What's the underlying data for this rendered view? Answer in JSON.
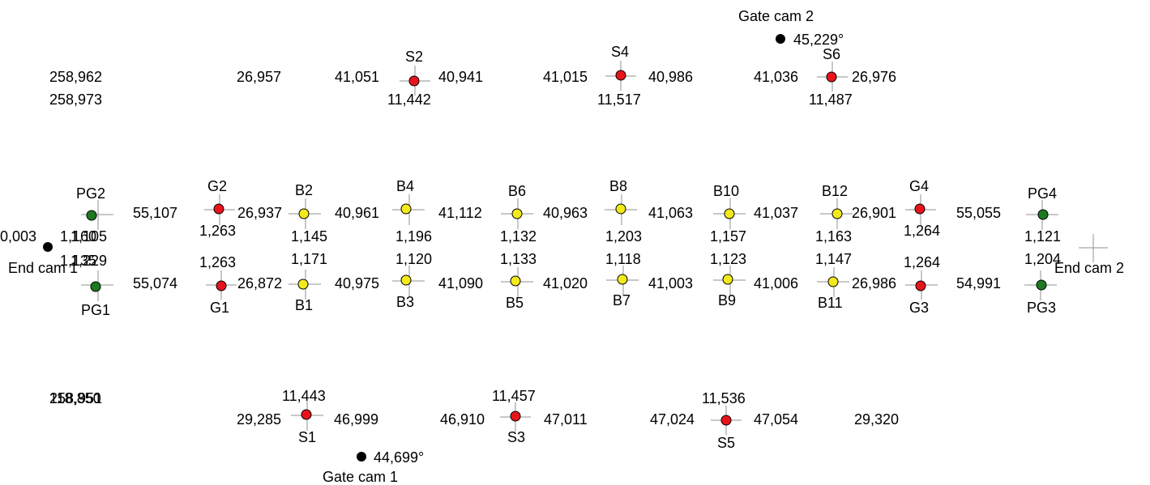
{
  "colors": {
    "red": "#e8141c",
    "yellow": "#f2ea1c",
    "green": "#1f7a1f",
    "black": "#000000",
    "crosshair": "#909090"
  },
  "cams": {
    "end_cam_1": {
      "label": "End cam 1",
      "value": "0,003"
    },
    "end_cam_2": {
      "label": "End cam 2"
    },
    "gate_cam_1": {
      "label": "Gate cam 1",
      "value": "44,699°"
    },
    "gate_cam_2": {
      "label": "Gate cam 2",
      "value": "45,229°"
    }
  },
  "top_left": {
    "a": "258,962",
    "b": "258,973"
  },
  "bottom_left": {
    "a": "258,951",
    "b": "118,850"
  },
  "upper_pads": {
    "S2": {
      "label": "S2",
      "left": "41,051",
      "right": "40,941",
      "below": "11,442"
    },
    "S4": {
      "label": "S4",
      "left": "41,015",
      "right": "40,986",
      "below": "11,517"
    },
    "S6": {
      "label": "S6",
      "left": "41,036",
      "right": "26,976",
      "below": "11,487"
    },
    "gap_left": "26,957"
  },
  "lower_pads": {
    "S1": {
      "label": "S1",
      "above": "11,443",
      "left": "29,285",
      "right": "46,999"
    },
    "S3": {
      "label": "S3",
      "above": "11,457",
      "left": "46,910",
      "right": "47,011"
    },
    "S5": {
      "label": "S5",
      "above": "11,536",
      "left": "47,024",
      "right": "47,054"
    },
    "gap_right": "29,320"
  },
  "top_row": {
    "PG2": {
      "label": "PG2",
      "a": "1,160",
      "b": "1,105"
    },
    "G2": {
      "label": "G2",
      "below": "1,263"
    },
    "B2": {
      "label": "B2",
      "below": "1,145"
    },
    "B4": {
      "label": "B4",
      "below": "1,196"
    },
    "B6": {
      "label": "B6",
      "below": "1,132"
    },
    "B8": {
      "label": "B8",
      "below": "1,203"
    },
    "B10": {
      "label": "B10",
      "below": "1,157"
    },
    "B12": {
      "label": "B12",
      "below": "1,163"
    },
    "G4": {
      "label": "G4",
      "below": "1,264"
    },
    "PG4": {
      "label": "PG4",
      "below": "1,121"
    },
    "spans": [
      "55,107",
      "26,937",
      "40,961",
      "41,112",
      "40,963",
      "41,063",
      "41,037",
      "26,901",
      "55,055"
    ]
  },
  "bottom_row": {
    "PG1": {
      "label": "PG1",
      "a": "1,135",
      "b": "1,229"
    },
    "G1": {
      "label": "G1",
      "above": "1,263"
    },
    "B1": {
      "label": "B1",
      "above": "1,171"
    },
    "B3": {
      "label": "B3",
      "above": "1,120"
    },
    "B5": {
      "label": "B5",
      "above": "1,133"
    },
    "B7": {
      "label": "B7",
      "above": "1,118"
    },
    "B9": {
      "label": "B9",
      "above": "1,123"
    },
    "B11": {
      "label": "B11",
      "above": "1,147"
    },
    "G3": {
      "label": "G3",
      "above": "1,264"
    },
    "PG3": {
      "label": "PG3",
      "above": "1,204"
    },
    "spans": [
      "55,074",
      "26,872",
      "40,975",
      "41,090",
      "41,020",
      "41,003",
      "41,006",
      "26,986",
      "54,991"
    ]
  }
}
